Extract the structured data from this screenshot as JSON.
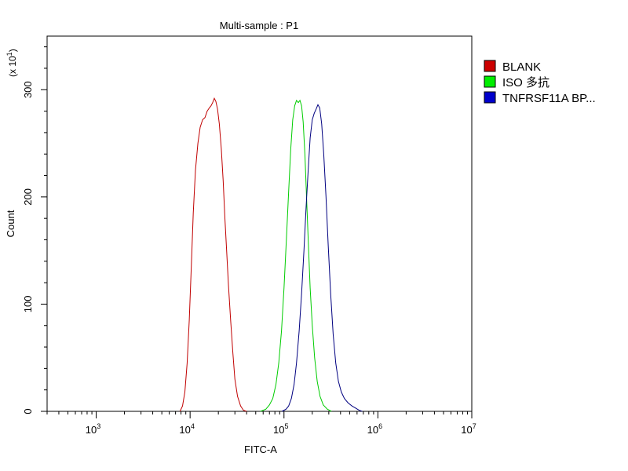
{
  "chart_data": {
    "type": "line",
    "title": "Multi-sample : P1",
    "xlabel": "FITC-A",
    "ylabel": "Count",
    "y_multiplier": "(x 10",
    "y_multiplier_exp": "1",
    "y_multiplier_close": ")",
    "x_scale": "log",
    "xlim": [
      300,
      10000000
    ],
    "ylim": [
      0,
      350
    ],
    "x_ticks": [
      {
        "value": 1000,
        "base": "10",
        "exp": "3"
      },
      {
        "value": 10000,
        "base": "10",
        "exp": "4"
      },
      {
        "value": 100000,
        "base": "10",
        "exp": "5"
      },
      {
        "value": 1000000,
        "base": "10",
        "exp": "6"
      },
      {
        "value": 10000000,
        "base": "10",
        "exp": "7"
      }
    ],
    "y_ticks": [
      {
        "value": 0,
        "label": "0"
      },
      {
        "value": 100,
        "label": "100"
      },
      {
        "value": 200,
        "label": "200"
      },
      {
        "value": 300,
        "label": "300"
      }
    ],
    "grid": false,
    "legend_position": "right",
    "series": [
      {
        "name": "BLANK",
        "color": "#c00000",
        "points": [
          [
            7800,
            0
          ],
          [
            8300,
            5
          ],
          [
            8800,
            18
          ],
          [
            9300,
            45
          ],
          [
            9800,
            85
          ],
          [
            10300,
            135
          ],
          [
            10800,
            185
          ],
          [
            11400,
            225
          ],
          [
            12100,
            250
          ],
          [
            12800,
            265
          ],
          [
            13600,
            272
          ],
          [
            14400,
            274
          ],
          [
            15200,
            280
          ],
          [
            16000,
            283
          ],
          [
            16700,
            285
          ],
          [
            17400,
            288
          ],
          [
            18100,
            292
          ],
          [
            18800,
            289
          ],
          [
            19600,
            282
          ],
          [
            20500,
            268
          ],
          [
            21500,
            245
          ],
          [
            22500,
            215
          ],
          [
            23500,
            180
          ],
          [
            24500,
            150
          ],
          [
            25600,
            118
          ],
          [
            27000,
            85
          ],
          [
            28500,
            55
          ],
          [
            30000,
            30
          ],
          [
            32000,
            14
          ],
          [
            34500,
            5
          ],
          [
            37000,
            1
          ],
          [
            40000,
            0
          ]
        ]
      },
      {
        "name": "ISO 多抗",
        "color": "#00cc00",
        "points": [
          [
            56000,
            0
          ],
          [
            64000,
            2
          ],
          [
            70000,
            6
          ],
          [
            76000,
            12
          ],
          [
            82000,
            25
          ],
          [
            88000,
            45
          ],
          [
            94000,
            75
          ],
          [
            100000,
            115
          ],
          [
            106000,
            160
          ],
          [
            112000,
            205
          ],
          [
            118000,
            245
          ],
          [
            124000,
            272
          ],
          [
            130000,
            285
          ],
          [
            136000,
            290
          ],
          [
            142000,
            288
          ],
          [
            148000,
            290
          ],
          [
            154000,
            285
          ],
          [
            160000,
            270
          ],
          [
            167000,
            240
          ],
          [
            174000,
            200
          ],
          [
            182000,
            155
          ],
          [
            190000,
            115
          ],
          [
            200000,
            80
          ],
          [
            212000,
            50
          ],
          [
            226000,
            28
          ],
          [
            242000,
            14
          ],
          [
            262000,
            6
          ],
          [
            290000,
            2
          ],
          [
            320000,
            0
          ]
        ]
      },
      {
        "name": "TNFRSF11A BP...",
        "color": "#000080",
        "points": [
          [
            95000,
            0
          ],
          [
            105000,
            2
          ],
          [
            112000,
            5
          ],
          [
            120000,
            12
          ],
          [
            128000,
            25
          ],
          [
            136000,
            45
          ],
          [
            145000,
            75
          ],
          [
            154000,
            110
          ],
          [
            163000,
            150
          ],
          [
            172000,
            190
          ],
          [
            181000,
            225
          ],
          [
            190000,
            255
          ],
          [
            200000,
            272
          ],
          [
            210000,
            278
          ],
          [
            220000,
            282
          ],
          [
            230000,
            286
          ],
          [
            240000,
            283
          ],
          [
            252000,
            268
          ],
          [
            265000,
            240
          ],
          [
            280000,
            200
          ],
          [
            296000,
            155
          ],
          [
            314000,
            110
          ],
          [
            334000,
            72
          ],
          [
            356000,
            45
          ],
          [
            380000,
            28
          ],
          [
            408000,
            18
          ],
          [
            440000,
            12
          ],
          [
            480000,
            8
          ],
          [
            530000,
            5
          ],
          [
            580000,
            3
          ],
          [
            630000,
            1
          ],
          [
            680000,
            0
          ]
        ]
      }
    ]
  }
}
